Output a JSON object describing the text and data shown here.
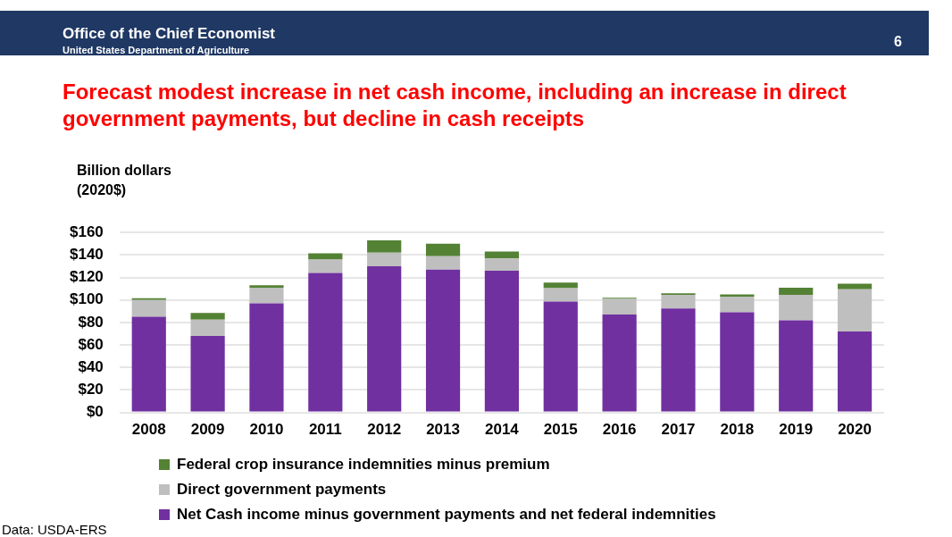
{
  "chart_data": {
    "type": "bar",
    "title": "Forecast modest increase in net cash income, including an increase in direct government payments, but decline in cash receipts",
    "ylabel": "Billion dollars\n(2020$)",
    "annotations": [
      "Office of the Chief Economist",
      "United States Department of Agriculture",
      "6",
      "Data: USDA-ERS"
    ],
    "categories": [
      "2008",
      "2009",
      "2010",
      "2011",
      "2012",
      "2013",
      "2014",
      "2015",
      "2016",
      "2017",
      "2018",
      "2019",
      "2020"
    ],
    "stacked": true,
    "legend": "bottom",
    "grid": "y",
    "ylim": [
      0,
      160
    ],
    "yticks": [
      {
        "value": 0,
        "label": "$0"
      },
      {
        "value": 20,
        "label": "$20"
      },
      {
        "value": 40,
        "label": "$40"
      },
      {
        "value": 60,
        "label": "$60"
      },
      {
        "value": 80,
        "label": "$80"
      },
      {
        "value": 100,
        "label": "$100"
      },
      {
        "value": 120,
        "label": "$120"
      },
      {
        "value": 140,
        "label": "$140"
      },
      {
        "value": 160,
        "label": "$160"
      }
    ],
    "series": [
      {
        "name": "Net Cash income minus government payments and net federal indemnities",
        "color": "#7030a0",
        "values": [
          85,
          68,
          97,
          124,
          130,
          127,
          126,
          98.5,
          87,
          92.5,
          89,
          82,
          72
        ]
      },
      {
        "name": "Direct government payments",
        "color": "#bfbfbf",
        "values": [
          15,
          14.5,
          14,
          12,
          12,
          12,
          11,
          12,
          14,
          12,
          14,
          22.5,
          37.5
        ]
      },
      {
        "name": "Federal crop insurance indemnities minus premium",
        "color": "#548235",
        "values": [
          1.5,
          6,
          2,
          5.5,
          11,
          11,
          6,
          5,
          1,
          1.5,
          2,
          6.5,
          5
        ]
      }
    ]
  }
}
